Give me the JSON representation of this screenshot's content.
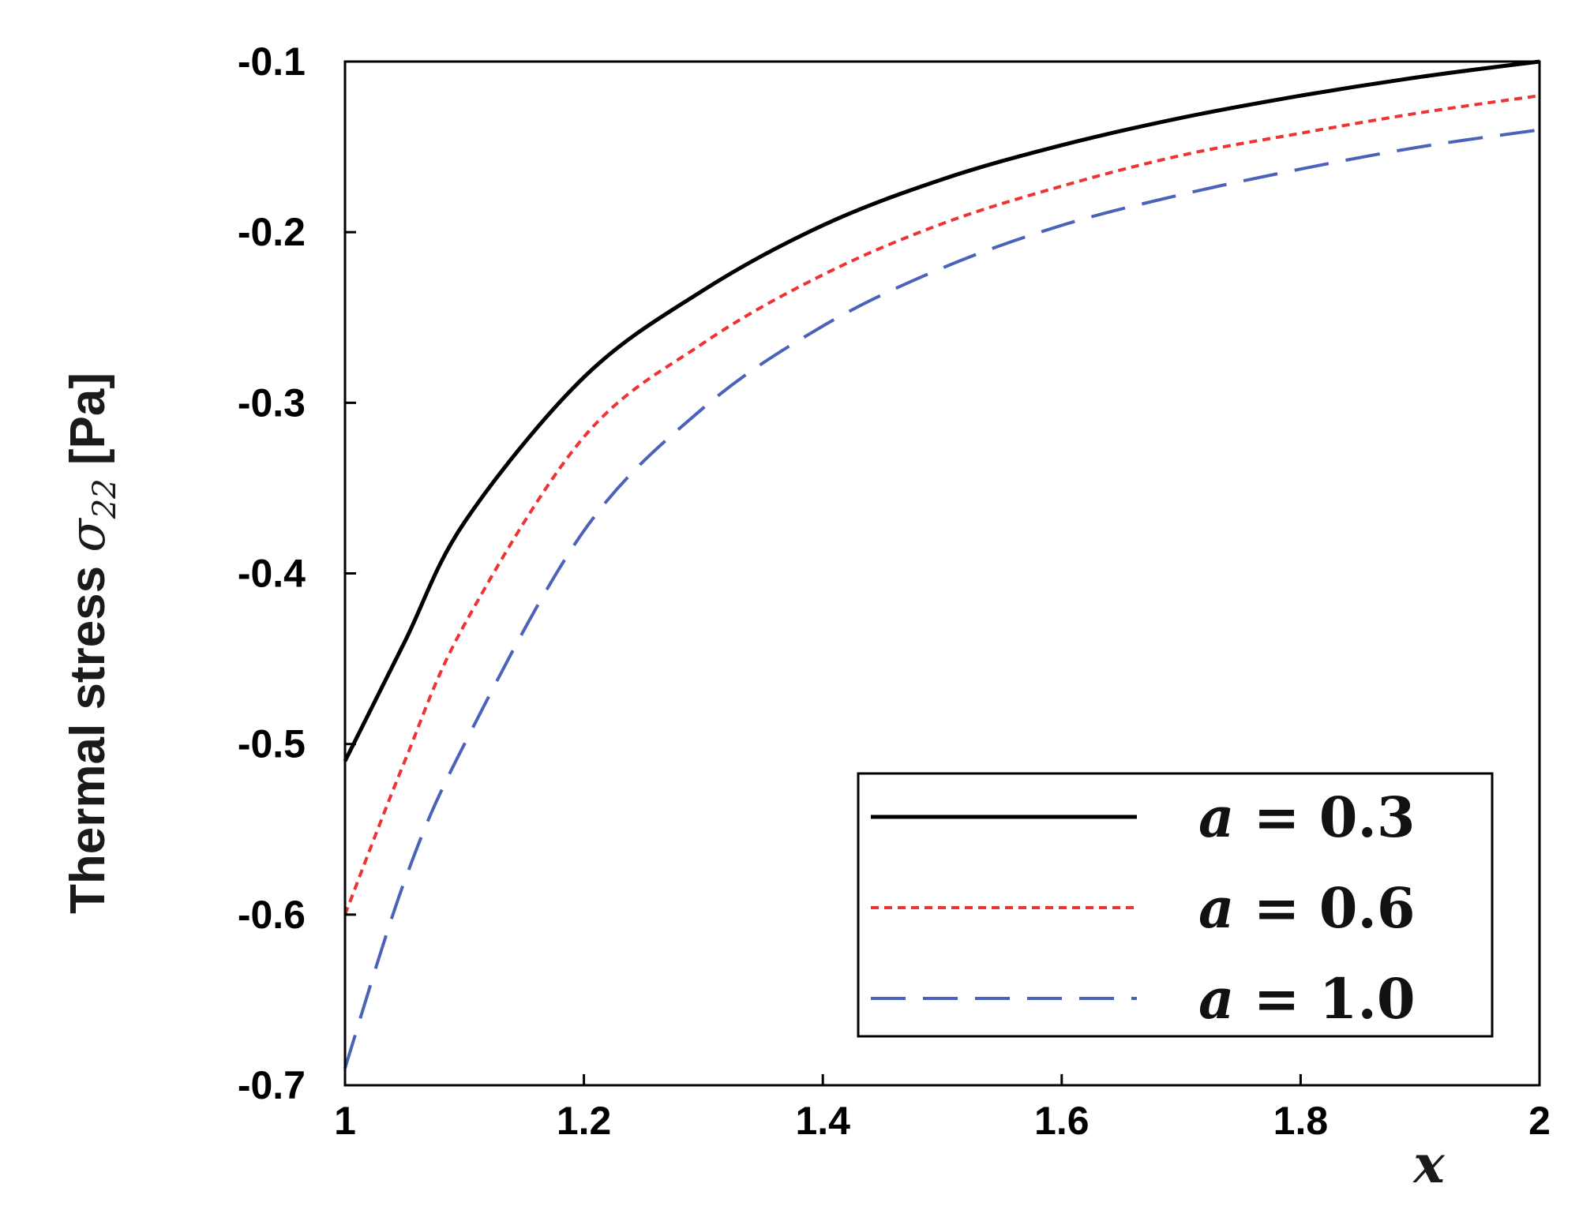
{
  "chart_data": {
    "type": "line",
    "ylabel": {
      "prefix": "Thermal stress ",
      "symbol": "σ",
      "subscript": "22",
      "unit": " [Pa]"
    },
    "xlabel": "x",
    "xlim": [
      1,
      2
    ],
    "ylim": [
      -0.7,
      -0.1
    ],
    "xticks": [
      1,
      1.2,
      1.4,
      1.6,
      1.8,
      2
    ],
    "xtick_labels": [
      "1",
      "1.2",
      "1.4",
      "1.6",
      "1.8",
      "2"
    ],
    "yticks": [
      -0.1,
      -0.2,
      -0.3,
      -0.4,
      -0.5,
      -0.6,
      -0.7
    ],
    "ytick_labels": [
      "-0.1",
      "-0.2",
      "-0.3",
      "-0.4",
      "-0.5",
      "-0.6",
      "-0.7"
    ],
    "grid": false,
    "legend_position": "bottom-right",
    "x": [
      1.0,
      1.05,
      1.1,
      1.2,
      1.3,
      1.4,
      1.5,
      1.6,
      1.7,
      1.8,
      1.9,
      2.0
    ],
    "series": [
      {
        "name": "a = 0.3",
        "legend": {
          "var": "a",
          "rest": " = 0.3"
        },
        "color": "#000000",
        "style": "solid",
        "values": [
          -0.51,
          -0.44,
          -0.37,
          -0.285,
          -0.234,
          -0.196,
          -0.169,
          -0.149,
          -0.133,
          -0.12,
          -0.109,
          -0.1
        ]
      },
      {
        "name": "a = 0.6",
        "legend": {
          "var": "a",
          "rest": " = 0.6"
        },
        "color": "#ee3333",
        "style": "dotted",
        "values": [
          -0.6,
          -0.51,
          -0.43,
          -0.32,
          -0.265,
          -0.225,
          -0.195,
          -0.173,
          -0.155,
          -0.142,
          -0.13,
          -0.12
        ]
      },
      {
        "name": "a = 1.0",
        "legend": {
          "var": "a",
          "rest": " = 1.0"
        },
        "color": "#4a63b8",
        "style": "dashed",
        "values": [
          -0.69,
          -0.58,
          -0.5,
          -0.375,
          -0.303,
          -0.255,
          -0.221,
          -0.196,
          -0.178,
          -0.163,
          -0.15,
          -0.14
        ]
      }
    ]
  }
}
